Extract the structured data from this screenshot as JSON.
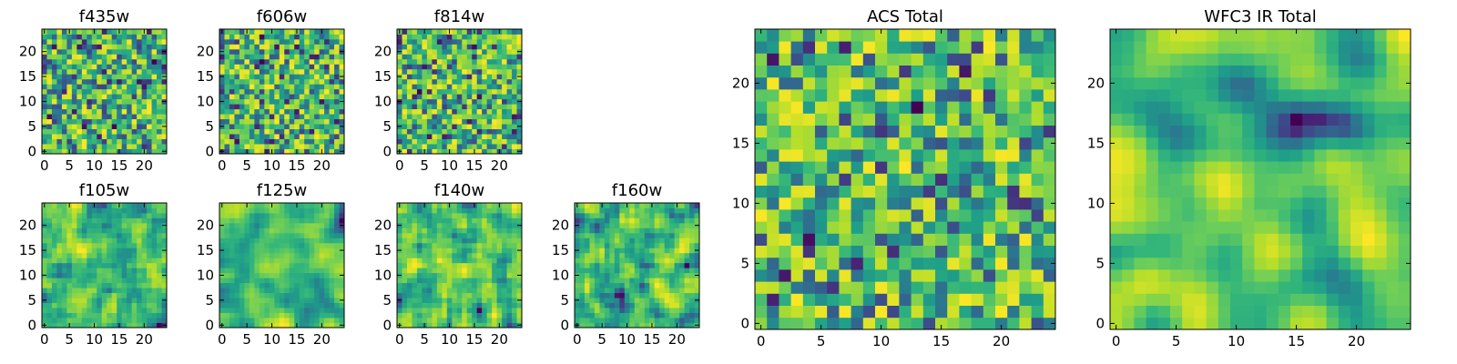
{
  "figure": {
    "colormap": "viridis",
    "background": "#ffffff"
  },
  "chart_data": [
    {
      "type": "heatmap",
      "title": "f435w",
      "grid_size": 25,
      "seed": 11,
      "smooth": 0,
      "xticks": [
        0,
        5,
        10,
        15,
        20
      ],
      "yticks": [
        0,
        5,
        10,
        15,
        20
      ],
      "xlim": [
        0,
        24
      ],
      "ylim": [
        0,
        24
      ]
    },
    {
      "type": "heatmap",
      "title": "f606w",
      "grid_size": 25,
      "seed": 23,
      "smooth": 0,
      "xticks": [
        0,
        5,
        10,
        15,
        20
      ],
      "yticks": [
        0,
        5,
        10,
        15,
        20
      ],
      "xlim": [
        0,
        24
      ],
      "ylim": [
        0,
        24
      ]
    },
    {
      "type": "heatmap",
      "title": "f814w",
      "grid_size": 25,
      "seed": 37,
      "smooth": 0,
      "xticks": [
        0,
        5,
        10,
        15,
        20
      ],
      "yticks": [
        0,
        5,
        10,
        15,
        20
      ],
      "xlim": [
        0,
        24
      ],
      "ylim": [
        0,
        24
      ]
    },
    {
      "type": "heatmap",
      "title": "f105w",
      "grid_size": 25,
      "seed": 41,
      "smooth": 1,
      "xticks": [
        0,
        5,
        10,
        15,
        20
      ],
      "yticks": [
        0,
        5,
        10,
        15,
        20
      ],
      "xlim": [
        0,
        24
      ],
      "ylim": [
        0,
        24
      ]
    },
    {
      "type": "heatmap",
      "title": "f125w",
      "grid_size": 25,
      "seed": 53,
      "smooth": 2,
      "xticks": [
        0,
        5,
        10,
        15,
        20
      ],
      "yticks": [
        0,
        5,
        10,
        15,
        20
      ],
      "xlim": [
        0,
        24
      ],
      "ylim": [
        0,
        24
      ]
    },
    {
      "type": "heatmap",
      "title": "f140w",
      "grid_size": 25,
      "seed": 67,
      "smooth": 1,
      "xticks": [
        0,
        5,
        10,
        15,
        20
      ],
      "yticks": [
        0,
        5,
        10,
        15,
        20
      ],
      "xlim": [
        0,
        24
      ],
      "ylim": [
        0,
        24
      ]
    },
    {
      "type": "heatmap",
      "title": "f160w",
      "grid_size": 25,
      "seed": 79,
      "smooth": 1,
      "xticks": [
        0,
        5,
        10,
        15,
        20
      ],
      "yticks": [
        0,
        5,
        10,
        15,
        20
      ],
      "xlim": [
        0,
        24
      ],
      "ylim": [
        0,
        24
      ]
    },
    {
      "type": "heatmap",
      "title": "ACS Total",
      "grid_size": 25,
      "seed": 83,
      "smooth": 0,
      "xticks": [
        0,
        5,
        10,
        15,
        20
      ],
      "yticks": [
        0,
        5,
        10,
        15,
        20
      ],
      "xlim": [
        0,
        24
      ],
      "ylim": [
        0,
        24
      ]
    },
    {
      "type": "heatmap",
      "title": "WFC3 IR Total",
      "grid_size": 25,
      "seed": 97,
      "smooth": 3,
      "xticks": [
        0,
        5,
        10,
        15,
        20
      ],
      "yticks": [
        0,
        5,
        10,
        15,
        20
      ],
      "xlim": [
        0,
        24
      ],
      "ylim": [
        0,
        24
      ]
    }
  ]
}
